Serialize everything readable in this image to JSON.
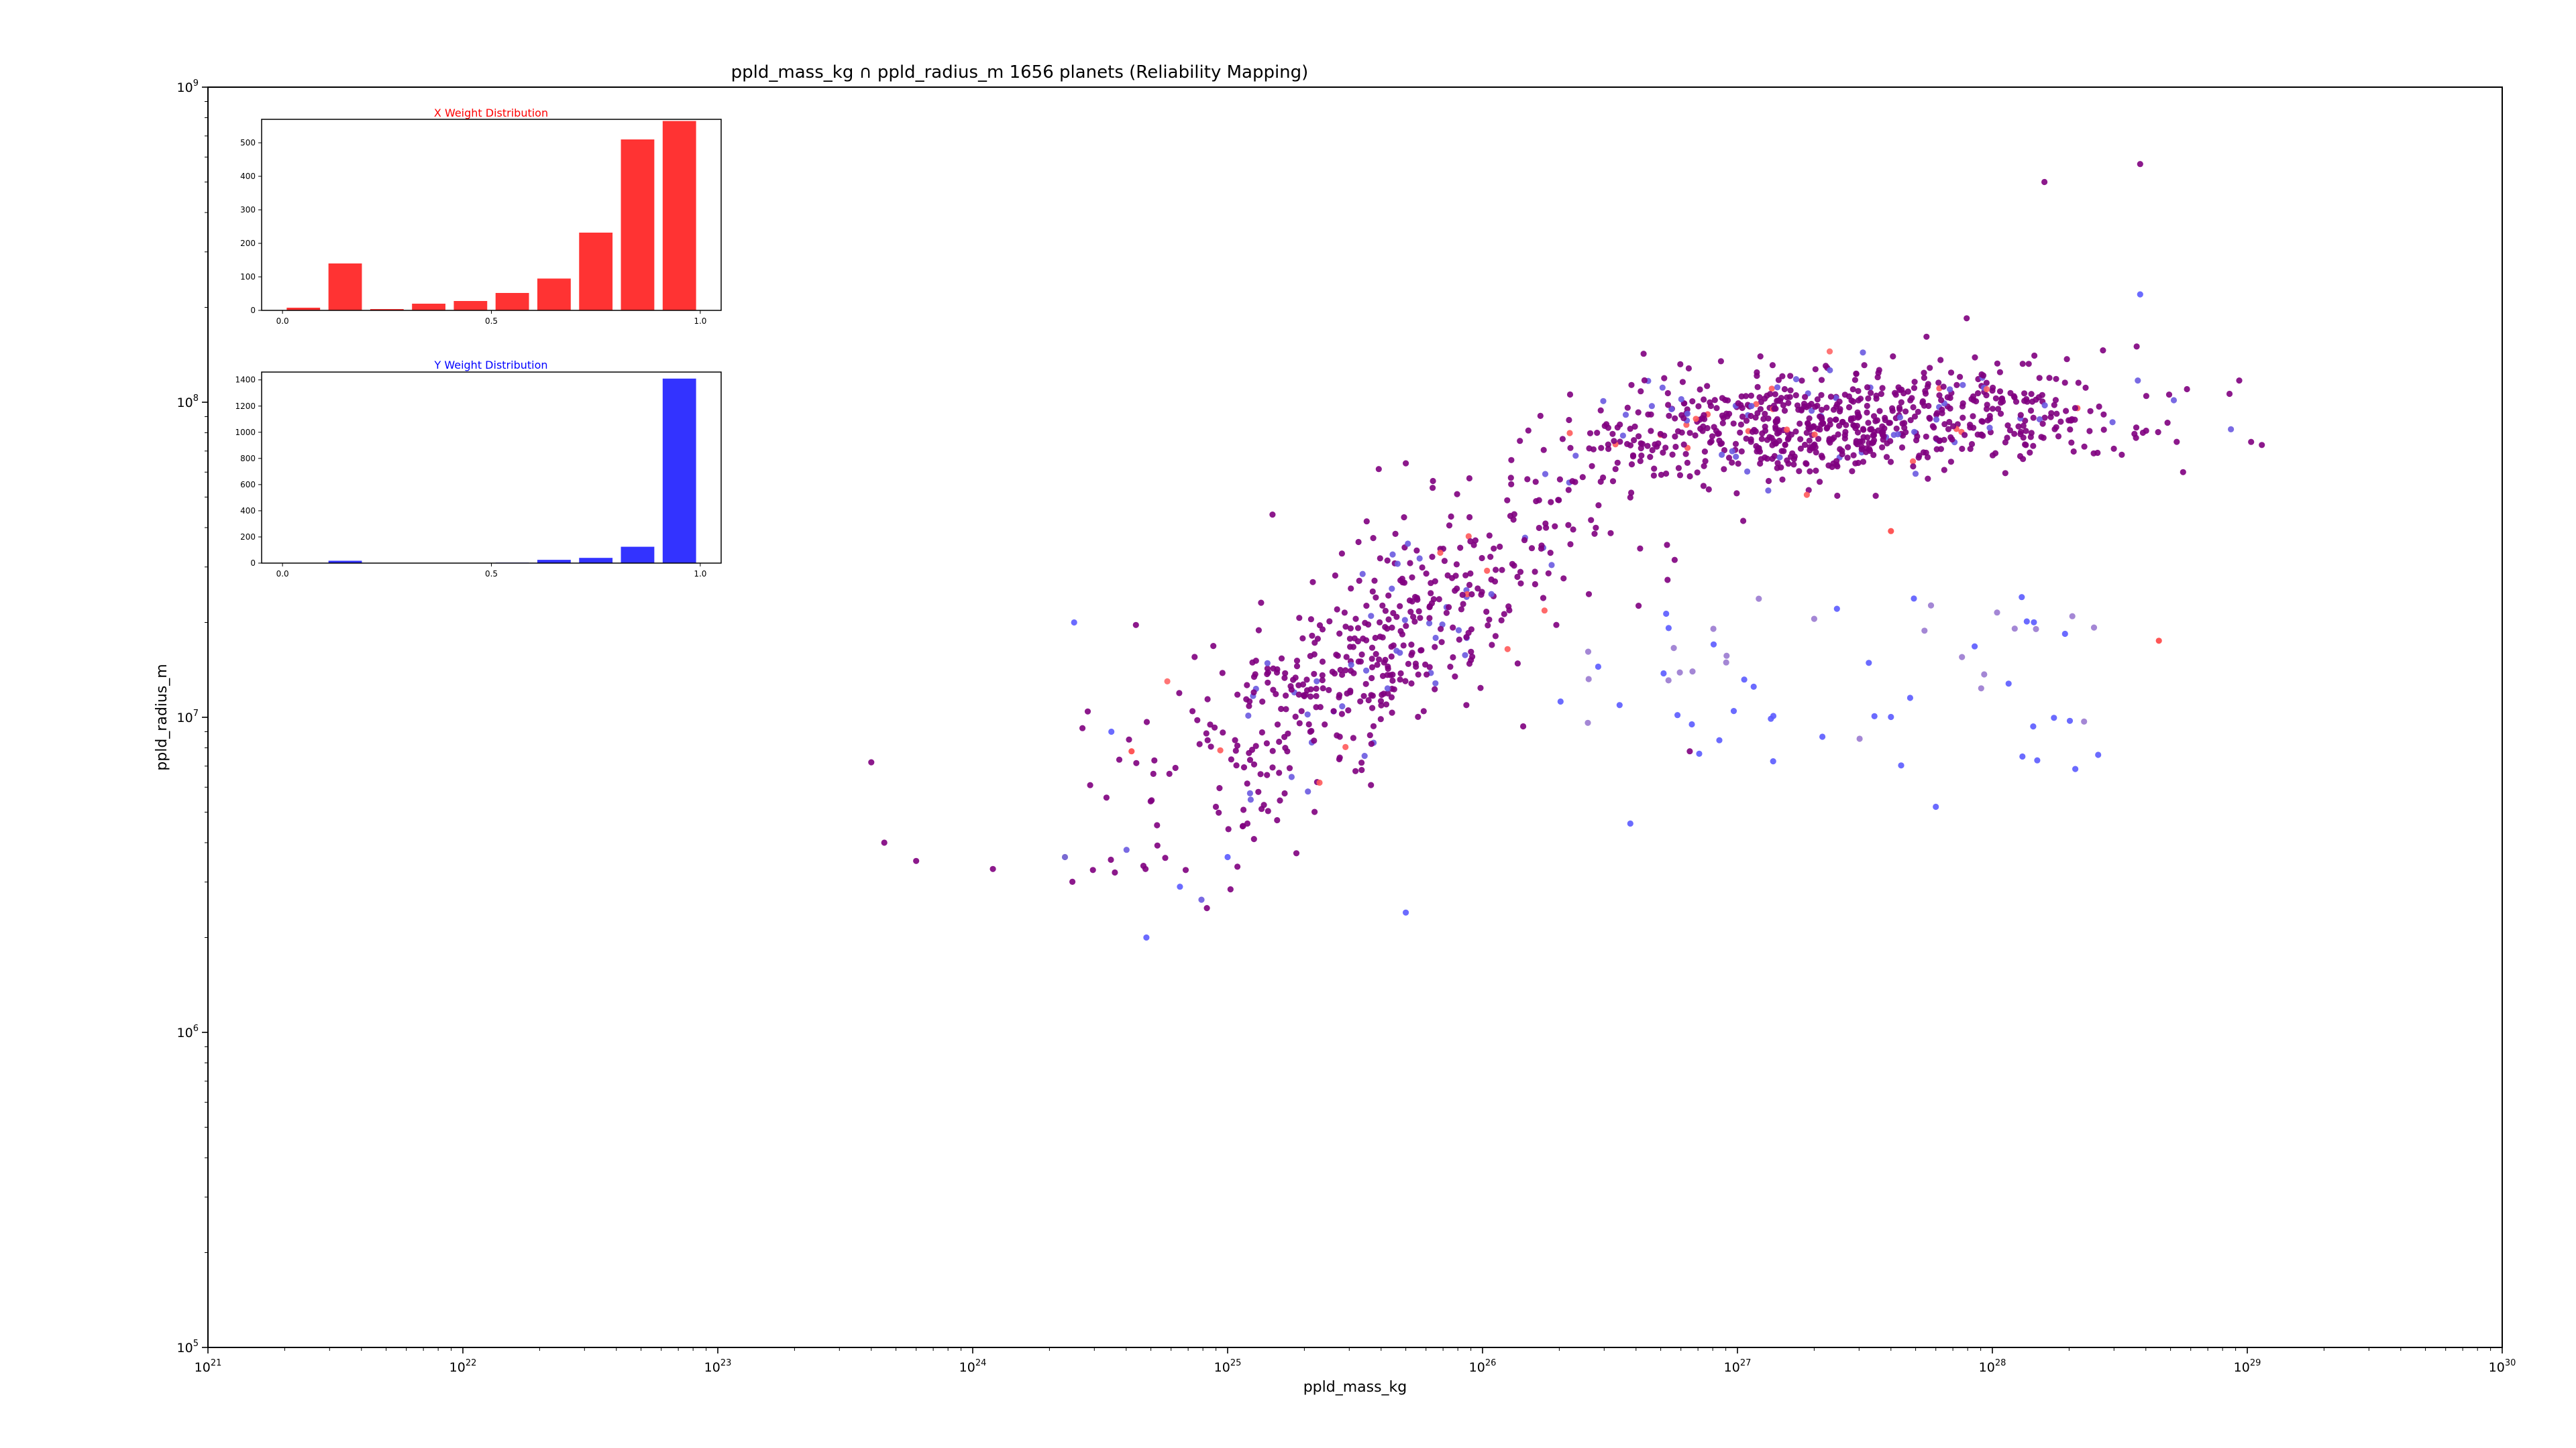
{
  "chart_data": [
    {
      "type": "scatter",
      "title": "ppld_mass_kg ∩ ppld_radius_m 1656 planets (Reliability Mapping)",
      "xlabel": "ppld_mass_kg",
      "ylabel": "ppld_radius_m",
      "xscale": "log",
      "yscale": "log",
      "xlim": [
        1e+21,
        1e+30
      ],
      "ylim": [
        100000.0,
        1000000000.0
      ],
      "x_ticks": [
        {
          "value": 1e+21,
          "base": "10",
          "exp": "21"
        },
        {
          "value": 1e+22,
          "base": "10",
          "exp": "22"
        },
        {
          "value": 1e+23,
          "base": "10",
          "exp": "23"
        },
        {
          "value": 1e+24,
          "base": "10",
          "exp": "24"
        },
        {
          "value": 1e+25,
          "base": "10",
          "exp": "25"
        },
        {
          "value": 1e+26,
          "base": "10",
          "exp": "26"
        },
        {
          "value": 1e+27,
          "base": "10",
          "exp": "27"
        },
        {
          "value": 1e+28,
          "base": "10",
          "exp": "28"
        },
        {
          "value": 1e+29,
          "base": "10",
          "exp": "29"
        },
        {
          "value": 1e+30,
          "base": "10",
          "exp": "30"
        }
      ],
      "y_ticks": [
        {
          "value": 100000.0,
          "base": "10",
          "exp": "5"
        },
        {
          "value": 1000000.0,
          "base": "10",
          "exp": "6"
        },
        {
          "value": 10000000.0,
          "base": "10",
          "exp": "7"
        },
        {
          "value": 100000000.0,
          "base": "10",
          "exp": "8"
        },
        {
          "value": 1000000000.0,
          "base": "10",
          "exp": "9"
        }
      ],
      "grid": false,
      "color_mapping": {
        "x_weight_color": "#ff0000",
        "y_weight_color": "#0000ff",
        "both_high": "#800080"
      },
      "points_sample": [
        {
          "x": 4e+23,
          "y": 7200000.0,
          "color": "#800080"
        },
        {
          "x": 4.5e+23,
          "y": 4000000.0,
          "color": "#800080"
        },
        {
          "x": 6e+23,
          "y": 3500000.0,
          "color": "#800080"
        },
        {
          "x": 1.2e+24,
          "y": 3300000.0,
          "color": "#800080"
        },
        {
          "x": 2.3e+24,
          "y": 3600000.0,
          "color": "#6a5acd"
        },
        {
          "x": 2.5e+24,
          "y": 20000000.0,
          "color": "#5b5bff"
        },
        {
          "x": 3.5e+24,
          "y": 9000000.0,
          "color": "#5b5bff"
        },
        {
          "x": 4.2e+24,
          "y": 7800000.0,
          "color": "#ff4444"
        },
        {
          "x": 4.8e+24,
          "y": 2000000.0,
          "color": "#5b5bff"
        },
        {
          "x": 6.5e+24,
          "y": 2900000.0,
          "color": "#5b5bff"
        },
        {
          "x": 5.8e+24,
          "y": 13000000.0,
          "color": "#ff6666"
        },
        {
          "x": 1e+25,
          "y": 3600000.0,
          "color": "#5b5bff"
        },
        {
          "x": 1.5e+25,
          "y": 44000000.0,
          "color": "#800080"
        },
        {
          "x": 5e+25,
          "y": 2400000.0,
          "color": "#5b5bff"
        },
        {
          "x": 5e+25,
          "y": 64000000.0,
          "color": "#800080"
        },
        {
          "x": 3.8e+26,
          "y": 4600000.0,
          "color": "#5b5bff"
        },
        {
          "x": 6.5e+26,
          "y": 7800000.0,
          "color": "#800080"
        },
        {
          "x": 2.3e+27,
          "y": 145000000.0,
          "color": "#ff6666"
        },
        {
          "x": 4e+27,
          "y": 39000000.0,
          "color": "#ff4444"
        },
        {
          "x": 6e+27,
          "y": 5200000.0,
          "color": "#5b5bff"
        },
        {
          "x": 9.5e+27,
          "y": 110000000.0,
          "color": "#ff6666"
        },
        {
          "x": 1.5e+28,
          "y": 7300000.0,
          "color": "#5b5bff"
        },
        {
          "x": 1.6e+28,
          "y": 500000000.0,
          "color": "#800080"
        },
        {
          "x": 2.6e+28,
          "y": 7600000.0,
          "color": "#5b5bff"
        },
        {
          "x": 3.8e+28,
          "y": 570000000.0,
          "color": "#800080"
        },
        {
          "x": 3.8e+28,
          "y": 220000000.0,
          "color": "#5b5bff"
        },
        {
          "x": 4.5e+28,
          "y": 17500000.0,
          "color": "#ff4444"
        },
        {
          "x": 5.6e+28,
          "y": 60000000.0,
          "color": "#800080"
        },
        {
          "x": 5.8e+28,
          "y": 110000000.0,
          "color": "#800080"
        }
      ]
    },
    {
      "type": "bar",
      "title": "X Weight Distribution",
      "color": "#ff3333",
      "xlim": [
        -0.05,
        1.05
      ],
      "ylim": [
        0,
        570
      ],
      "x_tick_labels": [
        "0.0",
        "0.5",
        "1.0"
      ],
      "y_tick_labels": [
        "0",
        "100",
        "200",
        "300",
        "400",
        "500"
      ],
      "bins": [
        0.0,
        0.1,
        0.2,
        0.3,
        0.4,
        0.5,
        0.6,
        0.7,
        0.8,
        0.9
      ],
      "values": [
        8,
        140,
        4,
        20,
        28,
        52,
        95,
        232,
        510,
        565
      ]
    },
    {
      "type": "bar",
      "title": "Y Weight Distribution",
      "color": "#3333ff",
      "xlim": [
        -0.05,
        1.05
      ],
      "ylim": [
        0,
        1460
      ],
      "x_tick_labels": [
        "0.0",
        "0.5",
        "1.0"
      ],
      "y_tick_labels": [
        "0",
        "200",
        "400",
        "600",
        "800",
        "1000",
        "1200",
        "1400"
      ],
      "bins": [
        0.0,
        0.1,
        0.2,
        0.3,
        0.4,
        0.5,
        0.6,
        0.7,
        0.8,
        0.9
      ],
      "values": [
        2,
        18,
        2,
        2,
        2,
        4,
        25,
        40,
        125,
        1410
      ]
    }
  ]
}
